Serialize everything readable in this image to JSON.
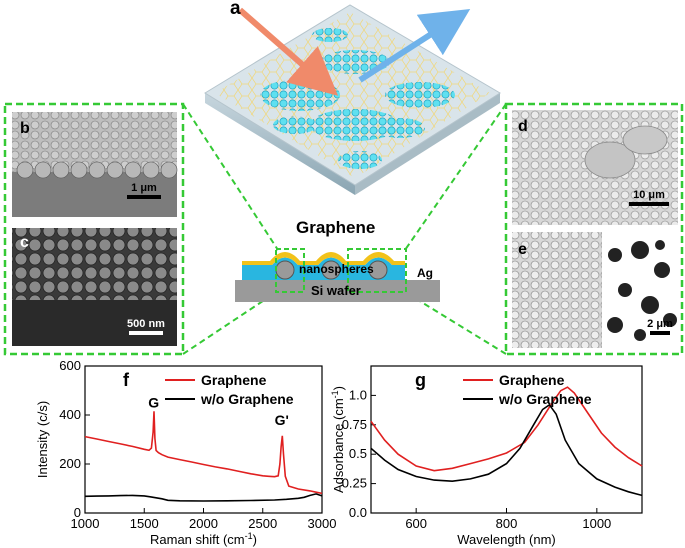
{
  "panels": {
    "a": {
      "label": "a"
    },
    "b": {
      "label": "b",
      "scale": "1 μm"
    },
    "c": {
      "label": "c",
      "scale": "500 nm"
    },
    "d": {
      "label": "d",
      "scale": "10 μm"
    },
    "e": {
      "label": "e",
      "scale": "2 μm"
    }
  },
  "schematic": {
    "title": "Graphene",
    "nanospheres": "nanospheres",
    "ag": "Ag",
    "substrate": "Si wafer"
  },
  "colors": {
    "frame_dash": "#35c935",
    "raman_graphene": "#e02020",
    "raman_wo": "#000000",
    "substrate": "#9a9a9a",
    "ag_layer": "#29b6e0",
    "graphene_layer": "#f2c21a"
  },
  "chart_data": [
    {
      "id": "f",
      "panel_label": "f",
      "type": "line",
      "title": "",
      "xlabel": "Raman shift (cm",
      "xlabel_sup": "-1",
      "xlabel_end": ")",
      "ylabel": "Intensity (c/s)",
      "xlim": [
        1000,
        3000
      ],
      "ylim": [
        0,
        600
      ],
      "xticks": [
        1000,
        1500,
        2000,
        2500,
        3000
      ],
      "yticks": [
        0,
        200,
        400,
        600
      ],
      "legend_position": "top-right",
      "annotations": [
        {
          "text": "G",
          "x": 1580,
          "y": 430
        },
        {
          "text": "G'",
          "x": 2660,
          "y": 360
        }
      ],
      "series": [
        {
          "name": "Graphene",
          "color": "#e02020",
          "x": [
            1000,
            1100,
            1200,
            1300,
            1400,
            1500,
            1540,
            1560,
            1575,
            1582,
            1590,
            1600,
            1620,
            1650,
            1700,
            1800,
            1900,
            2000,
            2100,
            2200,
            2300,
            2400,
            2500,
            2550,
            2600,
            2630,
            2645,
            2655,
            2665,
            2675,
            2690,
            2720,
            2800,
            2900,
            2950,
            3000
          ],
          "y": [
            312,
            302,
            292,
            282,
            272,
            260,
            256,
            265,
            330,
            415,
            305,
            255,
            246,
            238,
            228,
            218,
            208,
            198,
            188,
            180,
            170,
            160,
            152,
            150,
            148,
            152,
            200,
            270,
            315,
            240,
            150,
            110,
            98,
            90,
            85,
            80
          ]
        },
        {
          "name": "w/o Graphene",
          "color": "#000000",
          "x": [
            1000,
            1100,
            1200,
            1300,
            1400,
            1500,
            1550,
            1600,
            1650,
            1700,
            1800,
            2000,
            2200,
            2400,
            2600,
            2700,
            2800,
            2850,
            2900,
            2950,
            3000
          ],
          "y": [
            68,
            69,
            70,
            71,
            72,
            70,
            66,
            62,
            58,
            52,
            50,
            49,
            50,
            51,
            53,
            56,
            60,
            64,
            72,
            78,
            70
          ]
        }
      ]
    },
    {
      "id": "g",
      "panel_label": "g",
      "type": "line",
      "title": "",
      "xlabel": "Wavelength  (nm)",
      "ylabel": "Adsorbance (cm",
      "ylabel_sup": "-1",
      "ylabel_end": ")",
      "xlim": [
        500,
        1100
      ],
      "ylim": [
        0.0,
        1.25
      ],
      "xticks": [
        600,
        800,
        1000
      ],
      "yticks": [
        0.0,
        0.25,
        0.5,
        0.75,
        1.0
      ],
      "ytick_labels": [
        "0.0",
        "0.25",
        "0.5",
        "0.75",
        "1.0"
      ],
      "legend_position": "top-right",
      "series": [
        {
          "name": "Graphene",
          "color": "#e02020",
          "x": [
            500,
            530,
            560,
            600,
            640,
            680,
            720,
            760,
            800,
            840,
            870,
            900,
            920,
            935,
            950,
            980,
            1010,
            1040,
            1070,
            1100
          ],
          "y": [
            0.78,
            0.62,
            0.5,
            0.4,
            0.36,
            0.38,
            0.42,
            0.46,
            0.51,
            0.6,
            0.75,
            0.93,
            1.04,
            1.07,
            1.02,
            0.85,
            0.68,
            0.56,
            0.47,
            0.4
          ]
        },
        {
          "name": "w/o Graphene",
          "color": "#000000",
          "x": [
            500,
            530,
            560,
            600,
            640,
            680,
            720,
            760,
            800,
            830,
            860,
            880,
            895,
            910,
            930,
            960,
            1000,
            1040,
            1070,
            1100
          ],
          "y": [
            0.55,
            0.45,
            0.37,
            0.31,
            0.28,
            0.27,
            0.29,
            0.33,
            0.42,
            0.55,
            0.75,
            0.88,
            0.92,
            0.84,
            0.62,
            0.42,
            0.29,
            0.22,
            0.18,
            0.15
          ]
        }
      ]
    }
  ]
}
